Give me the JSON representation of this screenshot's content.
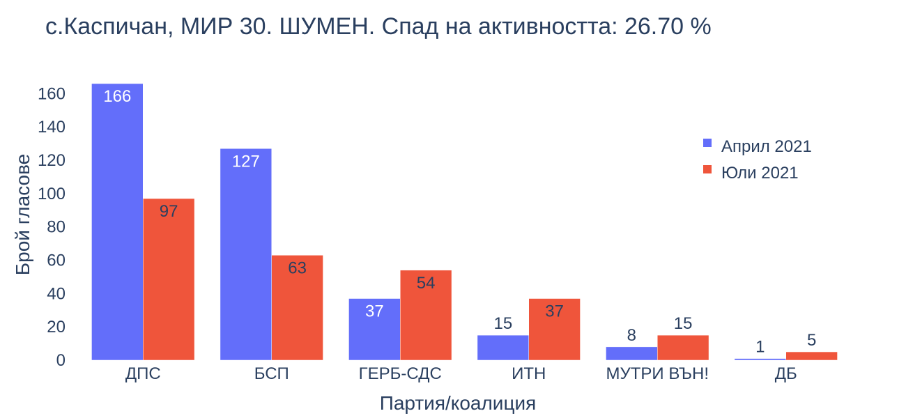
{
  "chart_data": {
    "type": "bar",
    "title": "с.Каспичан, МИР 30. ШУМЕН. Спад на активността: 26.70 %",
    "xlabel": "Партия/коалиция",
    "ylabel": "Брой гласове",
    "categories": [
      "ДПС",
      "БСП",
      "ГЕРБ-СДС",
      "ИТН",
      "МУТРИ ВЪН!",
      "ДБ"
    ],
    "series": [
      {
        "name": "Април 2021",
        "values": [
          166,
          127,
          37,
          15,
          8,
          1
        ],
        "color": "#636efa"
      },
      {
        "name": "Юли 2021",
        "values": [
          97,
          63,
          54,
          37,
          15,
          5
        ],
        "color": "#ef553b"
      }
    ],
    "ylim": [
      0,
      166
    ],
    "yticks": [
      0,
      20,
      40,
      60,
      80,
      100,
      120,
      140,
      160
    ],
    "grid": false,
    "legend": "top-right"
  }
}
